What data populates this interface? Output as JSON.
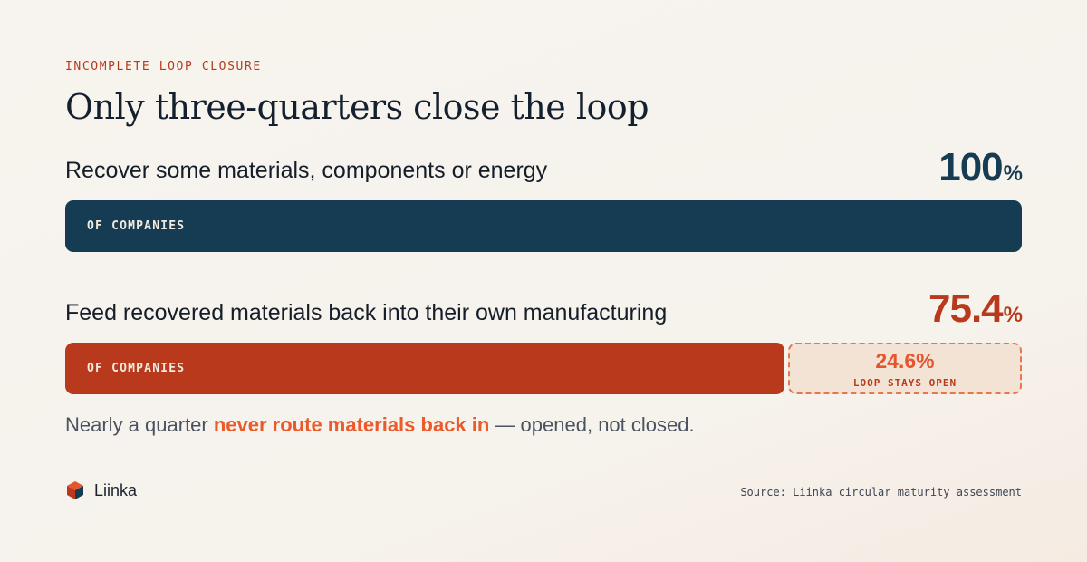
{
  "eyebrow": "INCOMPLETE LOOP CLOSURE",
  "title": "Only three-quarters close the loop",
  "rows": [
    {
      "label": "Recover some materials, components or energy",
      "value_num": "100",
      "value_unit": "%",
      "bar_tag": "OF COMPANIES"
    },
    {
      "label": "Feed recovered materials back into their own manufacturing",
      "value_num": "75.4",
      "value_unit": "%",
      "bar_tag": "OF COMPANIES",
      "remainder_value": "24.6%",
      "remainder_caption": "LOOP STAYS OPEN"
    }
  ],
  "note": {
    "before": "Nearly a quarter ",
    "highlight": "never route materials back in",
    "after": " — opened, not closed."
  },
  "brand": {
    "name": "Liinka",
    "icon": "liinka-logo-icon"
  },
  "source": "Source: Liinka circular maturity assessment",
  "colors": {
    "primary_bar": "#163c54",
    "secondary_bar": "#b8391b",
    "remainder_fill": "#f2e3d4",
    "remainder_border": "#e8754e",
    "highlight": "#ea5a2b"
  },
  "chart_data": {
    "type": "bar",
    "orientation": "horizontal",
    "categories": [
      "Recover some materials, components or energy",
      "Feed recovered materials back into their own manufacturing"
    ],
    "values": [
      100,
      75.4
    ],
    "remainder": [
      0,
      24.6
    ],
    "unit": "%",
    "xlim": [
      0,
      100
    ],
    "title": "Only three-quarters close the loop"
  }
}
